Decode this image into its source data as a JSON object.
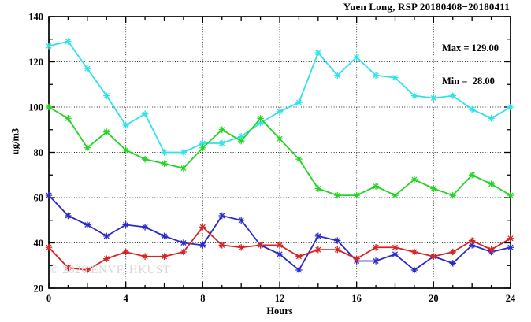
{
  "watermark": {
    "text": "© 2026 ENVF, HKUST"
  },
  "chart_data": {
    "type": "line",
    "title": "Yuen Long, RSP 20180408−20180411",
    "xlabel": "Hours",
    "ylabel": "ug/m3",
    "xlim": [
      0,
      24
    ],
    "ylim": [
      20,
      140
    ],
    "x_major_ticks": [
      0,
      4,
      8,
      12,
      16,
      20,
      24
    ],
    "y_major_ticks": [
      20,
      40,
      60,
      80,
      100,
      120,
      140
    ],
    "grid": "dotted",
    "legend_position": "top-right-inside",
    "annotations": {
      "max_label": "Max = 129.00",
      "min_label": "Min =  28.00",
      "max_value": 129.0,
      "min_value": 28.0
    },
    "x": [
      0,
      1,
      2,
      3,
      4,
      5,
      6,
      7,
      8,
      9,
      10,
      11,
      12,
      13,
      14,
      15,
      16,
      17,
      18,
      19,
      20,
      21,
      22,
      23,
      24
    ],
    "series": [
      {
        "name": "cyan",
        "color": "#2fe2e8",
        "values": [
          127,
          129,
          117,
          105,
          92,
          97,
          80,
          80,
          84,
          84,
          87,
          93,
          98,
          102,
          124,
          114,
          122,
          114,
          113,
          105,
          104,
          105,
          99,
          95,
          100
        ]
      },
      {
        "name": "green",
        "color": "#24d424",
        "values": [
          100,
          95,
          82,
          89,
          81,
          77,
          75,
          73,
          82,
          90,
          85,
          95,
          86,
          77,
          64,
          61,
          61,
          65,
          61,
          68,
          64,
          61,
          70,
          66,
          61
        ]
      },
      {
        "name": "blue",
        "color": "#2a2ac8",
        "values": [
          61,
          52,
          48,
          43,
          48,
          47,
          43,
          40,
          39,
          52,
          50,
          39,
          35,
          28,
          43,
          41,
          32,
          32,
          35,
          28,
          34,
          31,
          39,
          36,
          38
        ]
      },
      {
        "name": "red",
        "color": "#d42424",
        "values": [
          38,
          29,
          28,
          33,
          36,
          34,
          34,
          36,
          47,
          39,
          38,
          39,
          39,
          34,
          37,
          37,
          33,
          38,
          38,
          36,
          34,
          36,
          41,
          37,
          42
        ]
      }
    ]
  }
}
